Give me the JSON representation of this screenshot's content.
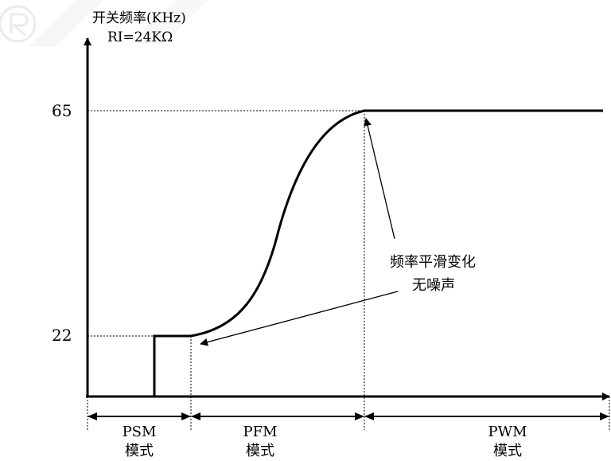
{
  "y_axis": {
    "title": "开关频率(KHz)",
    "subtitle": "RI=24KΩ"
  },
  "levels": {
    "high": "65",
    "low": "22"
  },
  "annotation": {
    "line1": "频率平滑变化",
    "line2": "无噪声"
  },
  "regions": [
    {
      "name": "PSM",
      "mode": "模式"
    },
    {
      "name": "PFM",
      "mode": "模式"
    },
    {
      "name": "PWM",
      "mode": "模式"
    }
  ],
  "colors": {
    "ink": "#000000",
    "watermark": "#d6d6dd"
  }
}
